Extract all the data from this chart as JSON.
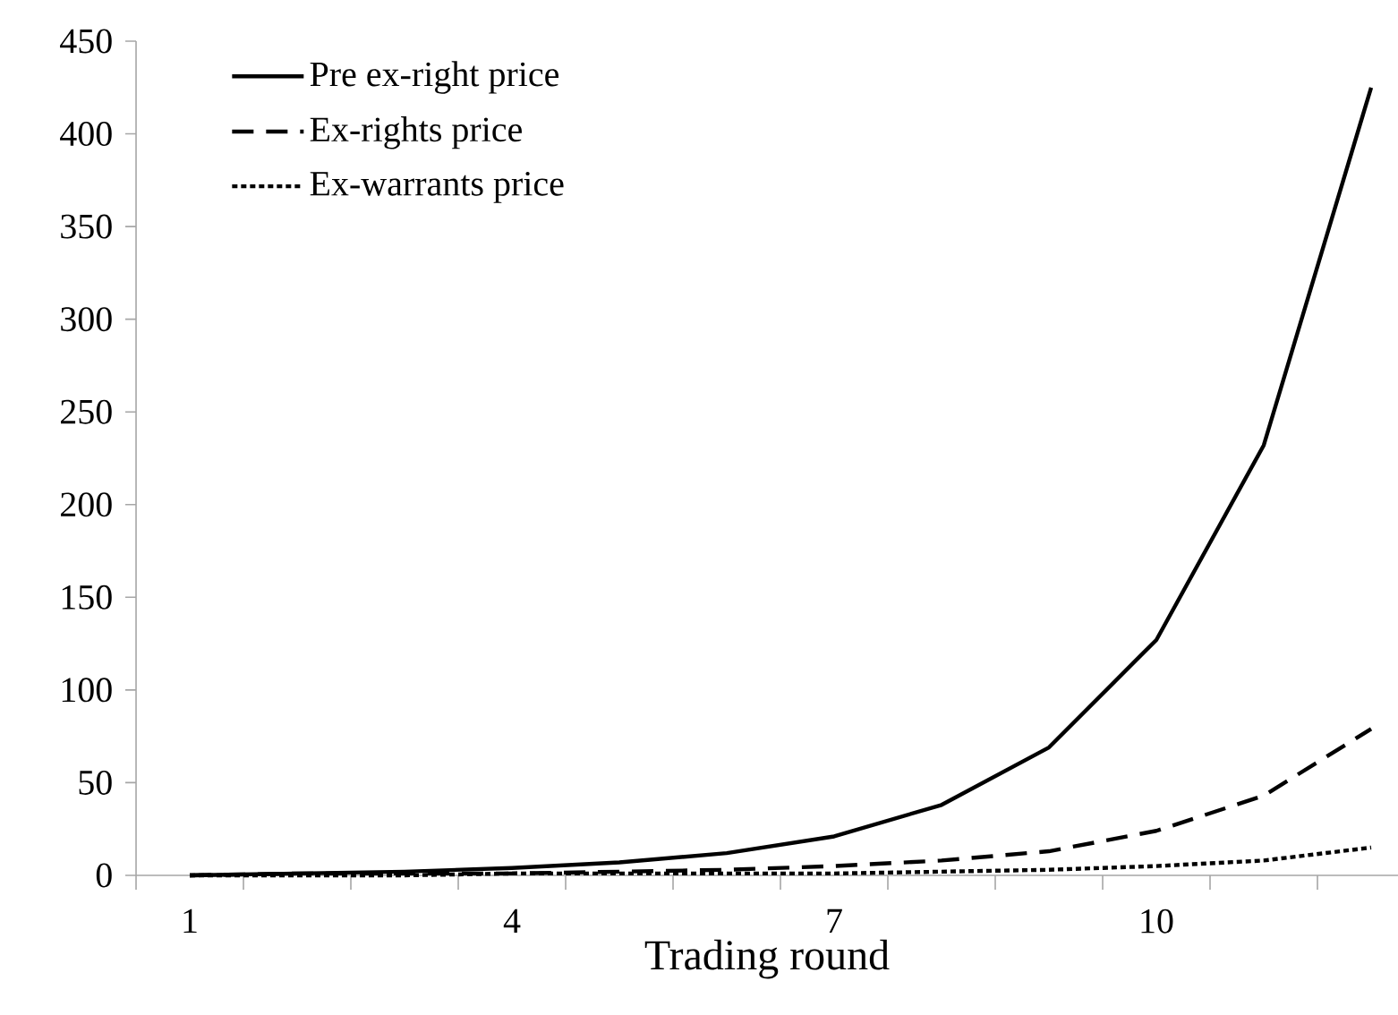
{
  "chart_data": {
    "type": "line",
    "xlabel": "Trading round",
    "categories": [
      "1",
      null,
      null,
      "4",
      null,
      null,
      "7",
      null,
      null,
      "10",
      null,
      null
    ],
    "ylim": [
      0,
      450
    ],
    "yticks": [
      0,
      50,
      100,
      150,
      200,
      250,
      300,
      350,
      400,
      450
    ],
    "legend": "top left",
    "marker": "none",
    "series": [
      {
        "name": "Pre ex-right price",
        "color": "#000000",
        "line_style": "solid",
        "values": [
          0,
          1,
          2,
          4,
          7,
          12,
          21,
          38,
          69,
          127,
          232,
          425
        ]
      },
      {
        "name": "Ex-rights price",
        "color": "#000000",
        "line_style": "dashed",
        "values": [
          0,
          1,
          1,
          1,
          2,
          3,
          5,
          8,
          13,
          24,
          43,
          79
        ]
      },
      {
        "name": "Ex-warrants price",
        "color": "#000000",
        "line_style": "dotted",
        "values": [
          0,
          0,
          0,
          1,
          1,
          1,
          1,
          2,
          3,
          5,
          8,
          15
        ]
      }
    ]
  }
}
